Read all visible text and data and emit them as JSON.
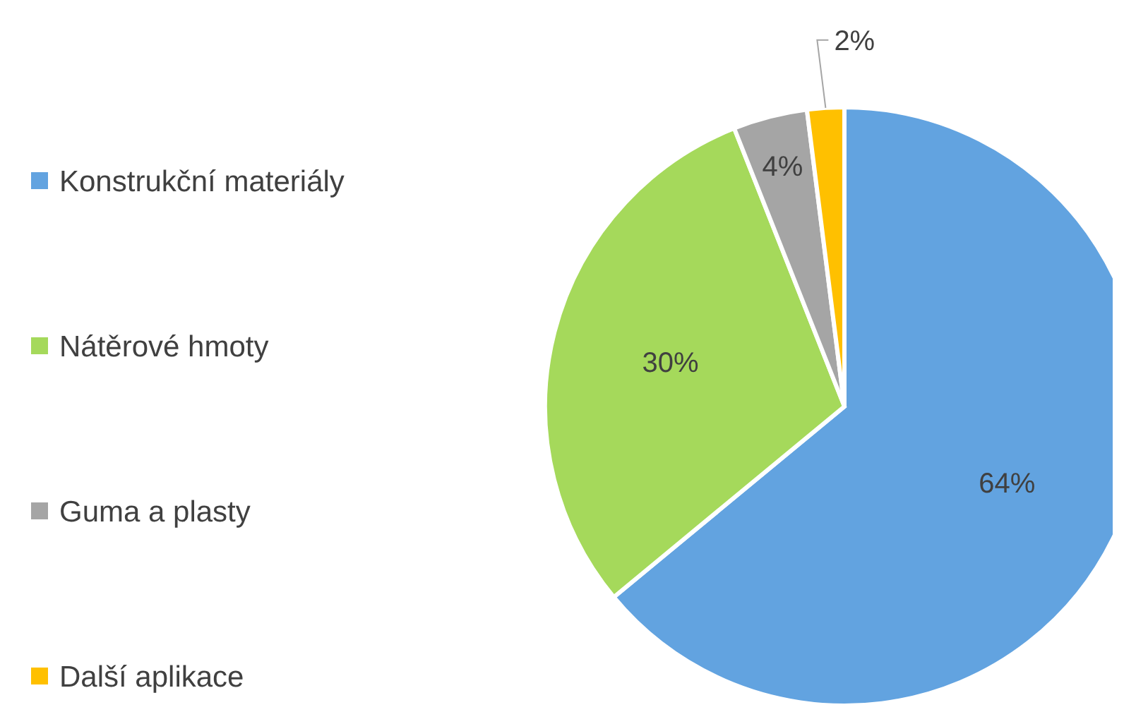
{
  "chart_data": {
    "type": "pie",
    "categories": [
      "Konstrukční materiály",
      "Nátěrové hmoty",
      "Guma a plasty",
      "Další aplikace"
    ],
    "values": [
      64,
      30,
      4,
      2
    ],
    "colors": [
      "#62a3e0",
      "#a5d95b",
      "#a5a5a5",
      "#ffc000"
    ],
    "value_labels": [
      "64%",
      "30%",
      "4%",
      "2%"
    ],
    "legend": "left"
  }
}
